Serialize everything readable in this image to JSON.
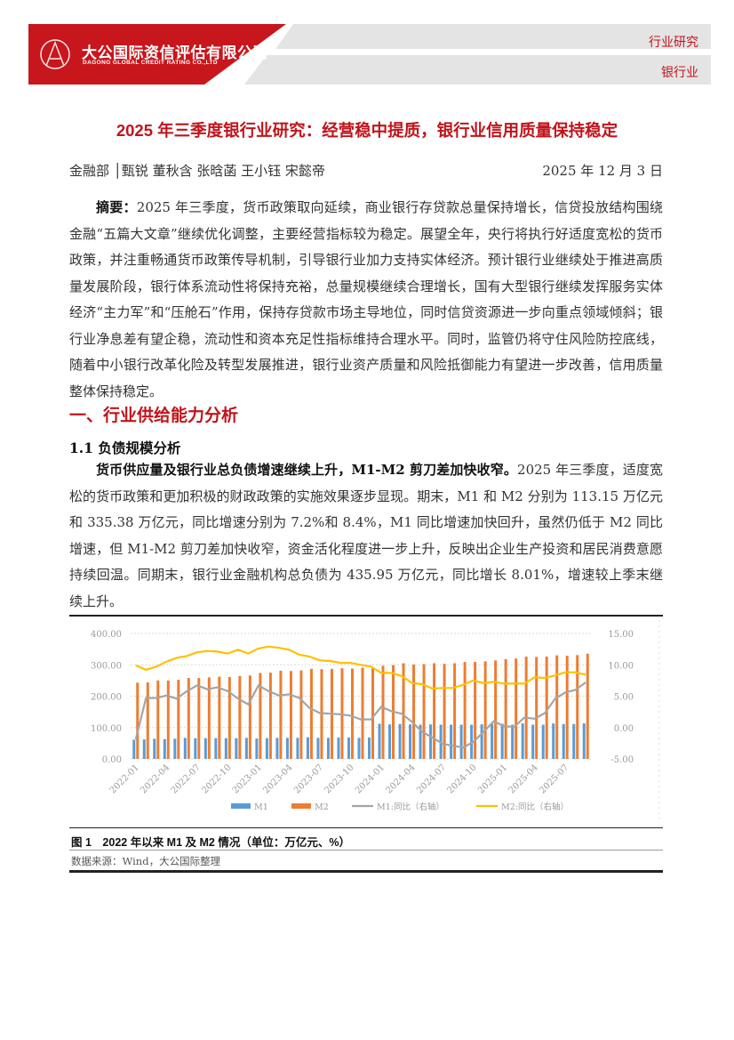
{
  "header": {
    "company_cn": "大公国际资信评估有限公司",
    "company_en": "DAGONG GLOBAL CREDIT RATING CO.,LTD",
    "tag_top": "行业研究",
    "tag_bottom": "银行业",
    "brand_color": "#c0141b"
  },
  "title": "2025 年三季度银行业研究：经营稳中提质，银行业信用质量保持稳定",
  "authors": "金融部 │甄锐 董秋含 张晗菡 王小钰 宋懿帝",
  "date": "2025 年 12 月 3 日",
  "summary": {
    "label": "摘要：",
    "text": "2025 年三季度，货币政策取向延续，商业银行存贷款总量保持增长，信贷投放结构围绕金融“五篇大文章”继续优化调整，主要经营指标较为稳定。展望全年，央行将执行好适度宽松的货币政策，并注重畅通货币政策传导机制，引导银行业加力支持实体经济。预计银行业继续处于推进高质量发展阶段，银行体系流动性将保持充裕，总量规模继续合理增长，国有大型银行继续发挥服务实体经济“主力军”和“压舱石”作用，保持存贷款市场主导地位，同时信贷资源进一步向重点领域倾斜；银行业净息差有望企稳，流动性和资本充足性指标维持合理水平。同时，监管仍将守住风险防控底线，随着中小银行改革化险及转型发展推进，银行业资产质量和风险抵御能力有望进一步改善，信用质量整体保持稳定。"
  },
  "section1": {
    "heading": "一、行业供给能力分析",
    "sub": "1.1 负债规模分析",
    "lead": "货币供应量及银行业总负债增速继续上升，M1-M2 剪刀差加快收窄。",
    "text": "2025 年三季度，适度宽松的货币政策和更加积极的财政政策的实施效果逐步显现。期末，M1 和 M2 分别为 113.15 万亿元和 335.38 万亿元，同比增速分别为 7.2%和 8.4%，M1 同比增速加快回升，虽然仍低于 M2 同比增速，但 M1-M2 剪刀差加快收窄，资金活化程度进一步上升，反映出企业生产投资和居民消费意愿持续回温。同期末，银行业金融机构总负债为 435.95 万亿元，同比增长 8.01%，增速较上季末继续上升。"
  },
  "figure": {
    "caption": "图 1　2022 年以来 M1 及 M2 情况（单位：万亿元、%）",
    "source": "数据来源：Wind，大公国际整理"
  },
  "chart_data": {
    "type": "bar+line",
    "left_axis": {
      "ylim": [
        0,
        400
      ],
      "ticks": [
        "0.00",
        "100.00",
        "200.00",
        "300.00",
        "400.00"
      ]
    },
    "right_axis": {
      "ylim": [
        -5,
        15
      ],
      "ticks": [
        "-5.00",
        "0.00",
        "5.00",
        "10.00",
        "15.00"
      ]
    },
    "grid": true,
    "legend_position": "bottom",
    "x_tick_labels": [
      "2022-01",
      "2022-04",
      "2022-07",
      "2022-10",
      "2023-01",
      "2023-04",
      "2023-07",
      "2023-10",
      "2024-01",
      "2024-04",
      "2024-07",
      "2024-10",
      "2025-01",
      "2025-04",
      "2025-07"
    ],
    "categories": [
      "2022-01",
      "2022-02",
      "2022-03",
      "2022-04",
      "2022-05",
      "2022-06",
      "2022-07",
      "2022-08",
      "2022-09",
      "2022-10",
      "2022-11",
      "2022-12",
      "2023-01",
      "2023-02",
      "2023-03",
      "2023-04",
      "2023-05",
      "2023-06",
      "2023-07",
      "2023-08",
      "2023-09",
      "2023-10",
      "2023-11",
      "2023-12",
      "2024-01",
      "2024-02",
      "2024-03",
      "2024-04",
      "2024-05",
      "2024-06",
      "2024-07",
      "2024-08",
      "2024-09",
      "2024-10",
      "2024-11",
      "2024-12",
      "2025-01",
      "2025-02",
      "2025-03",
      "2025-04",
      "2025-05",
      "2025-06",
      "2025-07",
      "2025-08",
      "2025-09"
    ],
    "series": [
      {
        "name": "M1",
        "type": "bar",
        "axis": "left",
        "color": "#5b9bd5",
        "values": [
          61,
          62,
          64,
          63,
          64,
          67,
          66,
          66,
          66,
          66,
          66,
          67,
          65,
          66,
          67,
          67,
          67,
          69,
          67,
          67,
          68,
          68,
          67,
          68,
          112,
          110,
          111,
          110,
          109,
          110,
          109,
          109,
          109,
          109,
          110,
          112,
          112,
          109,
          113,
          109,
          109,
          113,
          111,
          111,
          113.15
        ]
      },
      {
        "name": "M2",
        "type": "bar",
        "axis": "left",
        "color": "#ed7d31",
        "values": [
          243,
          244,
          250,
          250,
          252,
          258,
          258,
          260,
          262,
          261,
          264,
          266,
          274,
          275,
          281,
          280,
          282,
          287,
          286,
          287,
          289,
          288,
          291,
          292,
          297,
          299,
          305,
          301,
          302,
          305,
          303,
          305,
          309,
          309,
          311,
          314,
          318,
          320,
          326,
          325,
          326,
          330,
          329,
          331,
          335.38
        ]
      },
      {
        "name": "M1:同比（右轴）",
        "type": "line",
        "axis": "right",
        "color": "#a5a5a5",
        "values": [
          -1.9,
          4.7,
          4.7,
          5.1,
          4.6,
          5.8,
          6.7,
          6.1,
          6.4,
          5.8,
          4.6,
          3.7,
          6.7,
          5.8,
          5.1,
          5.3,
          4.7,
          3.1,
          2.3,
          2.2,
          2.1,
          1.9,
          1.3,
          1.3,
          3.3,
          2.6,
          2.2,
          0.9,
          -0.7,
          -1.6,
          -2.6,
          -2.9,
          -3.2,
          -2.3,
          -0.7,
          1.0,
          0.2,
          0.1,
          1.6,
          1.4,
          2.3,
          4.6,
          5.6,
          6.0,
          7.2
        ]
      },
      {
        "name": "M2:同比（右轴）",
        "type": "line",
        "axis": "right",
        "color": "#ffc000",
        "values": [
          9.9,
          9.2,
          9.7,
          10.5,
          11.1,
          11.4,
          12.0,
          12.2,
          12.1,
          11.8,
          12.4,
          11.8,
          12.6,
          12.9,
          12.7,
          12.4,
          11.6,
          11.3,
          10.7,
          10.6,
          10.3,
          10.3,
          10.0,
          9.7,
          8.7,
          8.7,
          8.2,
          7.1,
          6.9,
          6.2,
          6.3,
          6.3,
          6.8,
          7.5,
          7.1,
          7.3,
          7.0,
          7.0,
          7.0,
          8.0,
          7.9,
          8.3,
          8.8,
          8.8,
          8.4
        ]
      }
    ]
  }
}
